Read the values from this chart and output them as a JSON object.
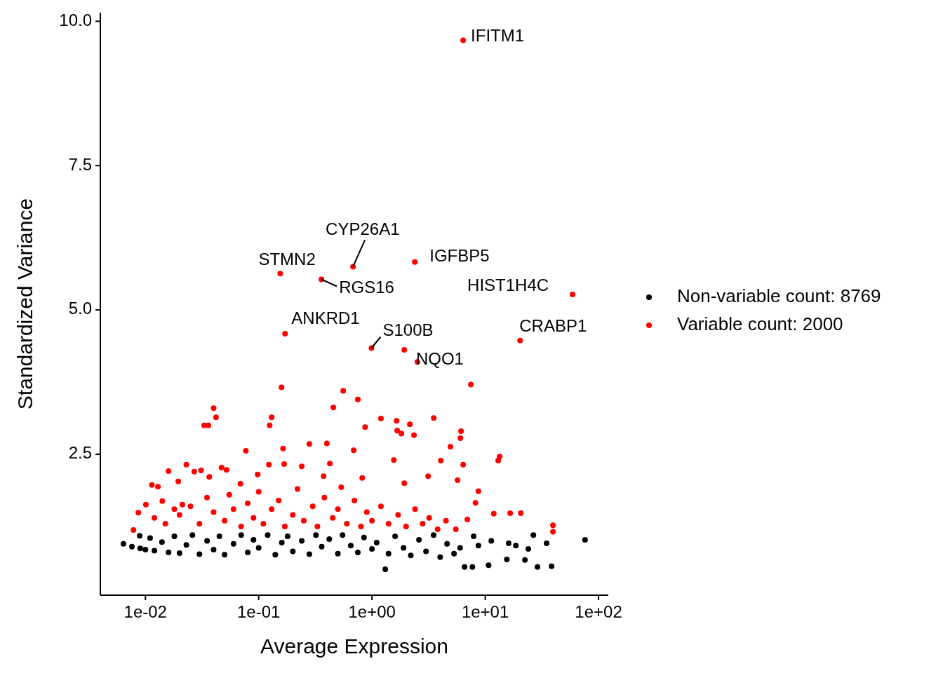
{
  "chart_data": {
    "type": "scatter",
    "xlabel": "Average Expression",
    "ylabel": "Standardized Variance",
    "log": "x",
    "grid": false,
    "legend": "right",
    "marker": "circle",
    "xlim": [
      0.004,
      122
    ],
    "ylim": [
      0.06,
      10.15
    ],
    "xticks": [
      {
        "value": 0.01,
        "label": "1e-02"
      },
      {
        "value": 0.1,
        "label": "1e-01"
      },
      {
        "value": 1,
        "label": "1e+00"
      },
      {
        "value": 10,
        "label": "1e+01"
      },
      {
        "value": 100,
        "label": "1e+02"
      }
    ],
    "yticks": [
      2.5,
      {
        "value": 5,
        "label": "5.0"
      },
      7.5,
      {
        "value": 10,
        "label": "10.0"
      }
    ],
    "series": [
      {
        "name": "Non-variable count: 8769",
        "color": "#000000",
        "x": [
          0.0064,
          0.0076,
          0.0089,
          0.009,
          0.01,
          0.011,
          0.012,
          0.014,
          0.016,
          0.018,
          0.02,
          0.023,
          0.026,
          0.03,
          0.035,
          0.04,
          0.045,
          0.05,
          0.06,
          0.07,
          0.08,
          0.09,
          0.1,
          0.12,
          0.14,
          0.16,
          0.18,
          0.2,
          0.24,
          0.28,
          0.32,
          0.36,
          0.42,
          0.5,
          0.55,
          0.65,
          0.75,
          0.85,
          1.0,
          1.1,
          1.31,
          1.4,
          1.6,
          1.9,
          2.2,
          2.6,
          3.0,
          3.5,
          4.0,
          4.6,
          5.3,
          6.0,
          6.56,
          7.7,
          7.9,
          8.7,
          10.7,
          11.3,
          15.5,
          16.1,
          18.6,
          22.4,
          24,
          26.6,
          28.9,
          34.8,
          38.5,
          76
        ],
        "values": [
          0.95,
          0.9,
          1.09,
          0.87,
          0.85,
          1.05,
          0.83,
          0.98,
          0.8,
          1.08,
          0.79,
          0.93,
          1.1,
          0.77,
          1.0,
          0.85,
          1.08,
          0.76,
          0.95,
          1.1,
          0.8,
          1.02,
          0.88,
          1.1,
          0.76,
          0.97,
          1.08,
          0.82,
          1.0,
          0.77,
          1.1,
          0.9,
          1.03,
          0.78,
          1.1,
          0.92,
          0.8,
          1.06,
          0.86,
          0.97,
          0.51,
          0.78,
          1.08,
          0.88,
          0.75,
          1.02,
          0.82,
          1.1,
          0.72,
          0.95,
          0.78,
          0.88,
          0.55,
          0.55,
          1.08,
          0.92,
          0.58,
          1.0,
          0.68,
          0.96,
          0.92,
          0.67,
          0.86,
          1.1,
          0.55,
          0.96,
          0.56,
          1.02
        ]
      },
      {
        "name": "Variable count: 2000",
        "color": "#ff0000",
        "x": [
          6.38,
          0.68,
          0.155,
          0.358,
          2.39,
          59,
          0.171,
          0.99,
          2.52,
          20.3,
          1.93,
          0.159,
          0.557,
          0.75,
          7.46,
          0.04,
          0.042,
          0.033,
          0.036,
          0.13,
          0.125,
          0.456,
          1.2,
          1.65,
          2.16,
          3.51,
          0.87,
          1.67,
          1.82,
          2.35,
          6.11,
          6.03,
          0.69,
          0.4,
          0.28,
          0.164,
          0.077,
          4.93,
          4.05,
          1.56,
          13.4,
          13.0,
          0.023,
          0.027,
          0.031,
          0.016,
          0.047,
          0.052,
          0.123,
          0.168,
          0.24,
          0.425,
          0.82,
          3.13,
          5.69,
          6.38,
          0.098,
          0.069,
          0.374,
          0.535,
          1.93,
          16.6,
          20.6,
          11.9,
          8.7,
          8.2,
          39.6,
          39.6,
          6.95,
          0.0114,
          0.0129,
          0.0195,
          0.0366,
          0.00785,
          0.00867,
          0.0101,
          0.0141,
          0.0212,
          0.02,
          0.025,
          0.03,
          0.035,
          0.04,
          0.05,
          0.055,
          0.06,
          0.07,
          0.08,
          0.09,
          0.1,
          0.11,
          0.13,
          0.15,
          0.17,
          0.2,
          0.22,
          0.25,
          0.3,
          0.33,
          0.38,
          0.45,
          0.5,
          0.6,
          0.7,
          0.8,
          0.9,
          1.0,
          1.2,
          1.4,
          1.7,
          2.0,
          2.4,
          2.8,
          3.2,
          3.8,
          4.5,
          5.5,
          0.015,
          0.018,
          0.012
        ],
        "values": [
          9.67,
          5.75,
          5.63,
          5.53,
          5.83,
          5.27,
          4.59,
          4.34,
          4.1,
          4.47,
          4.31,
          3.66,
          3.6,
          3.45,
          3.71,
          3.3,
          3.14,
          3.0,
          3.0,
          3.14,
          3.0,
          3.31,
          3.12,
          3.08,
          3.02,
          3.13,
          2.97,
          2.91,
          2.86,
          2.83,
          2.9,
          2.78,
          2.57,
          2.69,
          2.68,
          2.6,
          2.56,
          2.63,
          2.39,
          2.4,
          2.46,
          2.39,
          2.32,
          2.2,
          2.22,
          2.21,
          2.27,
          2.23,
          2.32,
          2.33,
          2.29,
          2.34,
          2.09,
          2.12,
          2.05,
          2.32,
          2.15,
          1.99,
          2.12,
          1.93,
          2.0,
          1.48,
          1.48,
          1.47,
          1.86,
          1.66,
          1.27,
          1.16,
          1.37,
          1.97,
          1.94,
          2.03,
          2.11,
          1.19,
          1.49,
          1.63,
          1.69,
          1.63,
          1.45,
          1.6,
          1.3,
          1.75,
          1.5,
          1.35,
          1.8,
          1.55,
          1.25,
          1.65,
          1.4,
          1.85,
          1.3,
          1.55,
          1.7,
          1.25,
          1.45,
          1.9,
          1.35,
          1.6,
          1.25,
          1.75,
          1.4,
          1.55,
          1.3,
          1.7,
          1.25,
          1.5,
          1.35,
          1.6,
          1.3,
          1.45,
          1.25,
          1.55,
          1.3,
          1.4,
          1.2,
          1.35,
          1.2,
          1.3,
          1.55,
          1.4
        ]
      }
    ],
    "annotations": [
      {
        "text": "IFITM1",
        "x": 6.38,
        "y": 9.67
      },
      {
        "text": "CYP26A1",
        "x": 0.68,
        "y": 5.75
      },
      {
        "text": "STMN2",
        "x": 0.155,
        "y": 5.63
      },
      {
        "text": "RGS16",
        "x": 0.358,
        "y": 5.53
      },
      {
        "text": "IGFBP5",
        "x": 2.39,
        "y": 5.83
      },
      {
        "text": "HIST1H4C",
        "x": 59,
        "y": 5.27
      },
      {
        "text": "ANKRD1",
        "x": 0.171,
        "y": 4.59
      },
      {
        "text": "S100B",
        "x": 0.99,
        "y": 4.34
      },
      {
        "text": "NQO1",
        "x": 2.52,
        "y": 4.1
      },
      {
        "text": "CRABP1",
        "x": 20.3,
        "y": 4.47
      }
    ]
  }
}
